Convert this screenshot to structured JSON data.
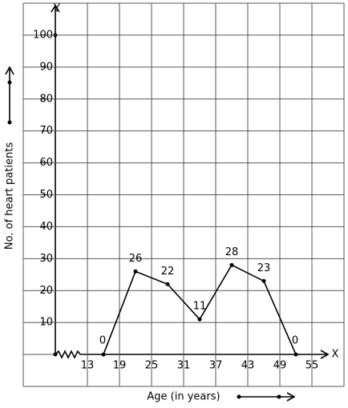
{
  "chart_data": {
    "type": "line",
    "x_axis_name": "X",
    "y_axis_name": "Y",
    "x_label": "Age (in years)",
    "y_label": "No. of heart patients",
    "x": [
      16,
      22,
      28,
      34,
      40,
      46,
      52
    ],
    "values": [
      0,
      26,
      22,
      11,
      28,
      23,
      0
    ],
    "color": "#000000",
    "xlim": [
      1,
      61
    ],
    "ylim": [
      -10,
      110
    ],
    "xticks": [
      13,
      19,
      25,
      31,
      37,
      43,
      49,
      55
    ],
    "yticks": [
      10,
      20,
      30,
      40,
      50,
      60,
      70,
      80,
      90,
      100
    ],
    "grid": true
  }
}
